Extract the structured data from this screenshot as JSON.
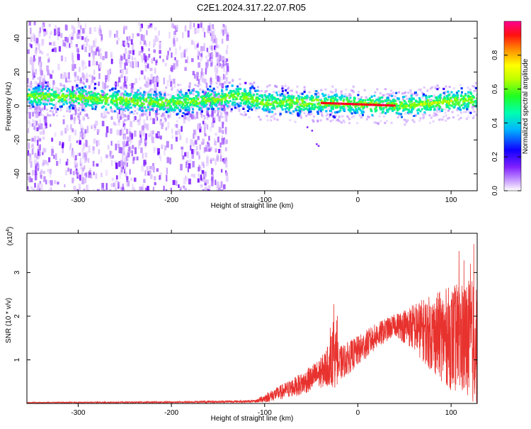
{
  "title": "C2E1.2024.317.22.07.R05",
  "chart_data": [
    {
      "type": "heatmap",
      "xlabel": "Height of straight line (km)",
      "ylabel": "Frequency (Hz)",
      "xlim": [
        -355,
        128
      ],
      "ylim": [
        -50,
        50
      ],
      "xticks": [
        -300,
        -200,
        -100,
        0,
        100
      ],
      "yticks": [
        -40,
        -20,
        0,
        20,
        40
      ],
      "colorbar": {
        "label": "Normalized spectral amplitude",
        "range": [
          0,
          1
        ],
        "ticks": [
          0.0,
          0.2,
          0.4,
          0.6,
          0.8
        ],
        "tick_labels": [
          "0.0",
          "0.2",
          "0.4",
          "0.6",
          "0.8"
        ],
        "colors": [
          "#ffffff",
          "#b070ff",
          "#7000ff",
          "#0000ff",
          "#00c8ff",
          "#00ff80",
          "#80ff00",
          "#ffff00",
          "#ffa000",
          "#ff0000",
          "#ff0080"
        ]
      },
      "ridge": [
        {
          "x": -350,
          "f": 6
        },
        {
          "x": -300,
          "f": 5
        },
        {
          "x": -250,
          "f": 3
        },
        {
          "x": -200,
          "f": 2
        },
        {
          "x": -150,
          "f": 4
        },
        {
          "x": -130,
          "f": 6
        },
        {
          "x": -100,
          "f": 2
        },
        {
          "x": -50,
          "f": 2
        },
        {
          "x": 0,
          "f": 1
        },
        {
          "x": 50,
          "f": 0
        },
        {
          "x": 100,
          "f": 3
        },
        {
          "x": 128,
          "f": 4
        }
      ],
      "noise_region_x": [
        -355,
        -140
      ]
    },
    {
      "type": "line",
      "xlabel": "Height of straight line (km)",
      "ylabel": "SNR (10 * v/v)",
      "y_multiplier": "(x10",
      "y_multiplier_exp": "4",
      "y_multiplier_close": ")",
      "xlim": [
        -355,
        128
      ],
      "ylim": [
        0,
        3.9
      ],
      "xticks": [
        -300,
        -200,
        -100,
        0,
        100
      ],
      "yticks": [
        1,
        2,
        3
      ],
      "color": "#e8322e",
      "envelope": [
        {
          "x": -355,
          "mean": 0.02,
          "amp": 0.01
        },
        {
          "x": -200,
          "mean": 0.03,
          "amp": 0.02
        },
        {
          "x": -110,
          "mean": 0.05,
          "amp": 0.03
        },
        {
          "x": -100,
          "mean": 0.12,
          "amp": 0.1
        },
        {
          "x": -80,
          "mean": 0.28,
          "amp": 0.18
        },
        {
          "x": -60,
          "mean": 0.45,
          "amp": 0.25
        },
        {
          "x": -40,
          "mean": 0.7,
          "amp": 0.35
        },
        {
          "x": -30,
          "mean": 0.9,
          "amp": 0.5
        },
        {
          "x": -25,
          "mean": 1.05,
          "amp": 0.7
        },
        {
          "x": -20,
          "mean": 0.9,
          "amp": 0.4
        },
        {
          "x": 0,
          "mean": 1.2,
          "amp": 0.35
        },
        {
          "x": 20,
          "mean": 1.55,
          "amp": 0.3
        },
        {
          "x": 40,
          "mean": 1.8,
          "amp": 0.25
        },
        {
          "x": 60,
          "mean": 1.75,
          "amp": 0.55
        },
        {
          "x": 80,
          "mean": 1.6,
          "amp": 0.9
        },
        {
          "x": 100,
          "mean": 1.5,
          "amp": 1.2
        },
        {
          "x": 128,
          "mean": 1.4,
          "amp": 1.5
        }
      ]
    }
  ]
}
